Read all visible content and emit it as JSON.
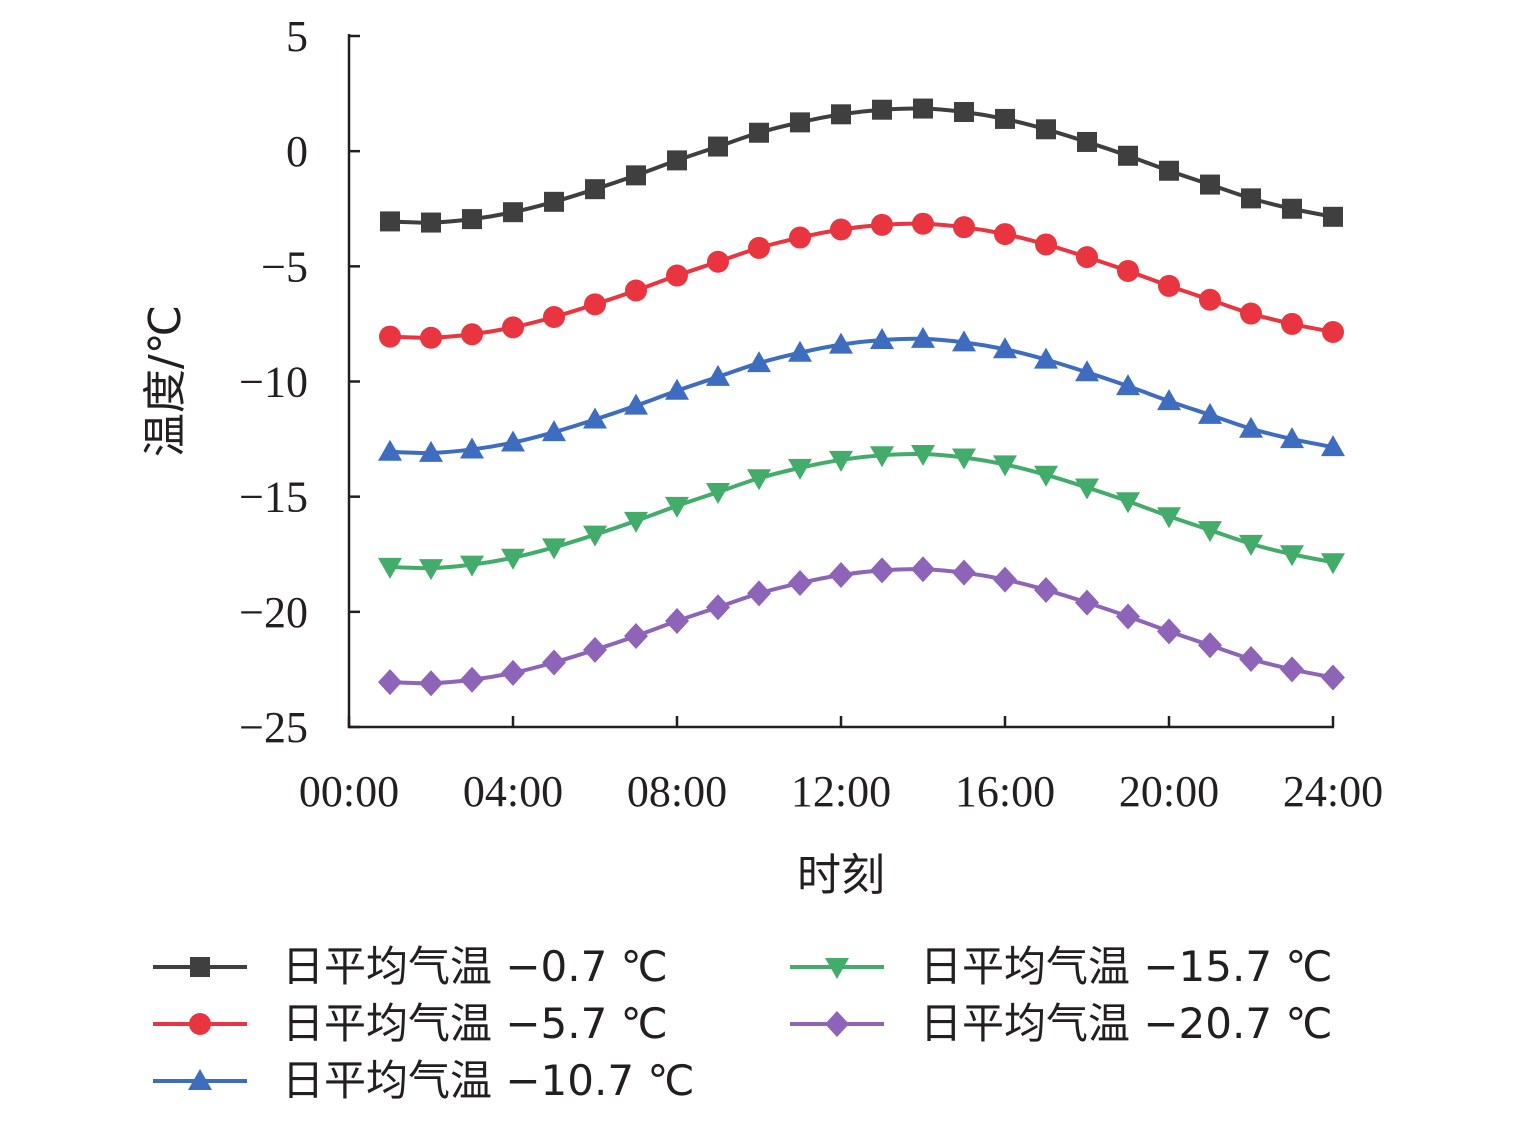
{
  "chart_data": {
    "type": "line",
    "xlabel": "时刻",
    "ylabel": "温度/℃",
    "xlim": [
      0,
      24
    ],
    "ylim": [
      -25,
      5
    ],
    "xticks": [
      0,
      4,
      8,
      12,
      16,
      20,
      24
    ],
    "xtick_labels": [
      "00:00",
      "04:00",
      "08:00",
      "12:00",
      "16:00",
      "20:00",
      "24:00"
    ],
    "yticks": [
      5,
      0,
      -5,
      -10,
      -15,
      -20,
      -25
    ],
    "ytick_labels": [
      "5",
      "0",
      "−5",
      "−10",
      "−15",
      "−20",
      "−25"
    ],
    "x": [
      1,
      2,
      3,
      4,
      5,
      6,
      7,
      8,
      9,
      10,
      11,
      12,
      13,
      14,
      15,
      16,
      17,
      18,
      19,
      20,
      21,
      22,
      23,
      24
    ],
    "grid": false,
    "legend_position": "bottom",
    "series": [
      {
        "name": "日平均气温 −0.7 ℃",
        "color": "#3f3f3f",
        "marker": "square",
        "values": [
          -3.05,
          -3.1,
          -2.95,
          -2.65,
          -2.2,
          -1.65,
          -1.05,
          -0.4,
          0.2,
          0.8,
          1.25,
          1.6,
          1.8,
          1.85,
          1.7,
          1.4,
          0.95,
          0.4,
          -0.2,
          -0.85,
          -1.45,
          -2.05,
          -2.5,
          -2.85
        ]
      },
      {
        "name": "日平均气温 −5.7 ℃",
        "color": "#e8353f",
        "marker": "circle",
        "values": [
          -8.05,
          -8.1,
          -7.95,
          -7.65,
          -7.2,
          -6.65,
          -6.05,
          -5.4,
          -4.8,
          -4.2,
          -3.75,
          -3.4,
          -3.2,
          -3.15,
          -3.3,
          -3.6,
          -4.05,
          -4.6,
          -5.2,
          -5.85,
          -6.45,
          -7.05,
          -7.5,
          -7.85
        ]
      },
      {
        "name": "日平均气温 −10.7 ℃",
        "color": "#3e6dbf",
        "marker": "triangle-up",
        "values": [
          -13.05,
          -13.1,
          -12.95,
          -12.65,
          -12.2,
          -11.65,
          -11.05,
          -10.4,
          -9.8,
          -9.2,
          -8.75,
          -8.4,
          -8.2,
          -8.15,
          -8.3,
          -8.6,
          -9.05,
          -9.6,
          -10.2,
          -10.85,
          -11.45,
          -12.05,
          -12.5,
          -12.85
        ]
      },
      {
        "name": "日平均气温 −15.7 ℃",
        "color": "#43ac6a",
        "marker": "triangle-down",
        "values": [
          -18.05,
          -18.1,
          -17.95,
          -17.65,
          -17.2,
          -16.65,
          -16.05,
          -15.4,
          -14.8,
          -14.2,
          -13.75,
          -13.4,
          -13.2,
          -13.15,
          -13.3,
          -13.6,
          -14.05,
          -14.6,
          -15.2,
          -15.85,
          -16.45,
          -17.05,
          -17.5,
          -17.85
        ]
      },
      {
        "name": "日平均气温 −20.7 ℃",
        "color": "#8e64b8",
        "marker": "diamond",
        "values": [
          -23.05,
          -23.1,
          -22.95,
          -22.65,
          -22.2,
          -21.65,
          -21.05,
          -20.4,
          -19.8,
          -19.2,
          -18.75,
          -18.4,
          -18.2,
          -18.15,
          -18.3,
          -18.6,
          -19.05,
          -19.6,
          -20.2,
          -20.85,
          -21.45,
          -22.05,
          -22.5,
          -22.85
        ]
      }
    ]
  }
}
